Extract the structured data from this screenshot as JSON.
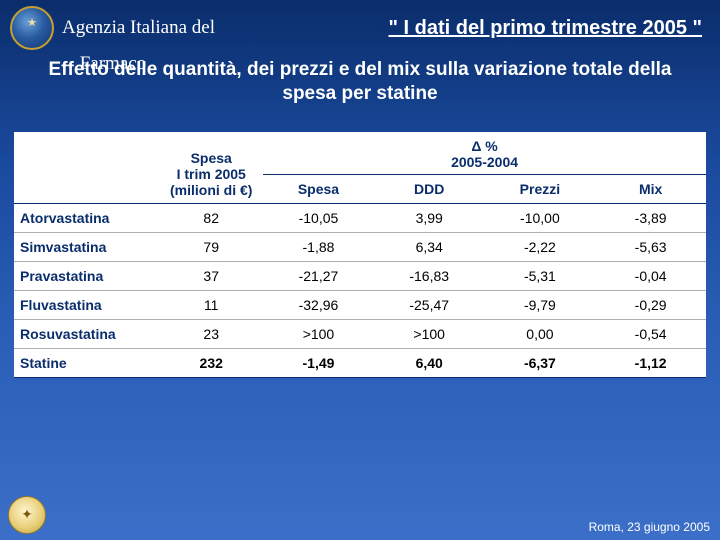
{
  "header": {
    "agency_line1": "Agenzia Italiana del",
    "agency_line2": "Farmaco",
    "title": "\" I dati del primo trimestre 2005 \""
  },
  "subtitle": "Effetto delle quantità, dei prezzi e del mix sulla variazione totale della spesa per statine",
  "table": {
    "colhead_spesa_l1": "Spesa",
    "colhead_spesa_l2": "I trim 2005",
    "colhead_spesa_l3": "(milioni di €)",
    "group_delta": "Δ %",
    "group_years": "2005-2004",
    "columns": [
      "Spesa",
      "DDD",
      "Prezzi",
      "Mix"
    ],
    "rows": [
      {
        "label": "Atorvastatina",
        "spesa": "82",
        "dspesa": "-10,05",
        "ddd": "3,99",
        "prezzi": "-10,00",
        "mix": "-3,89"
      },
      {
        "label": "Simvastatina",
        "spesa": "79",
        "dspesa": "-1,88",
        "ddd": "6,34",
        "prezzi": "-2,22",
        "mix": "-5,63"
      },
      {
        "label": "Pravastatina",
        "spesa": "37",
        "dspesa": "-21,27",
        "ddd": "-16,83",
        "prezzi": "-5,31",
        "mix": "-0,04"
      },
      {
        "label": "Fluvastatina",
        "spesa": "11",
        "dspesa": "-32,96",
        "ddd": "-25,47",
        "prezzi": "-9,79",
        "mix": "-0,29"
      },
      {
        "label": "Rosuvastatina",
        "spesa": "23",
        "dspesa": ">100",
        "ddd": ">100",
        "prezzi": "0,00",
        "mix": "-0,54"
      }
    ],
    "total": {
      "label": "Statine",
      "spesa": "232",
      "dspesa": "-1,49",
      "ddd": "6,40",
      "prezzi": "-6,37",
      "mix": "-1,12"
    }
  },
  "footer": {
    "date_place": "Roma, 23 giugno 2005"
  },
  "style": {
    "bg_gradient_top": "#0a2d6b",
    "bg_gradient_bottom": "#3b6fc8",
    "text_white": "#ffffff",
    "table_heading_color": "#0a2d6b",
    "table_border_color": "#0a2d6b",
    "row_border_color": "#b0b0b0",
    "emblem_border": "#c8a030",
    "title_fontsize_pt": 15,
    "subtitle_fontsize_pt": 14,
    "table_fontsize_pt": 10.5,
    "col_widths_pct": [
      21,
      15,
      16,
      16,
      16,
      16
    ]
  }
}
